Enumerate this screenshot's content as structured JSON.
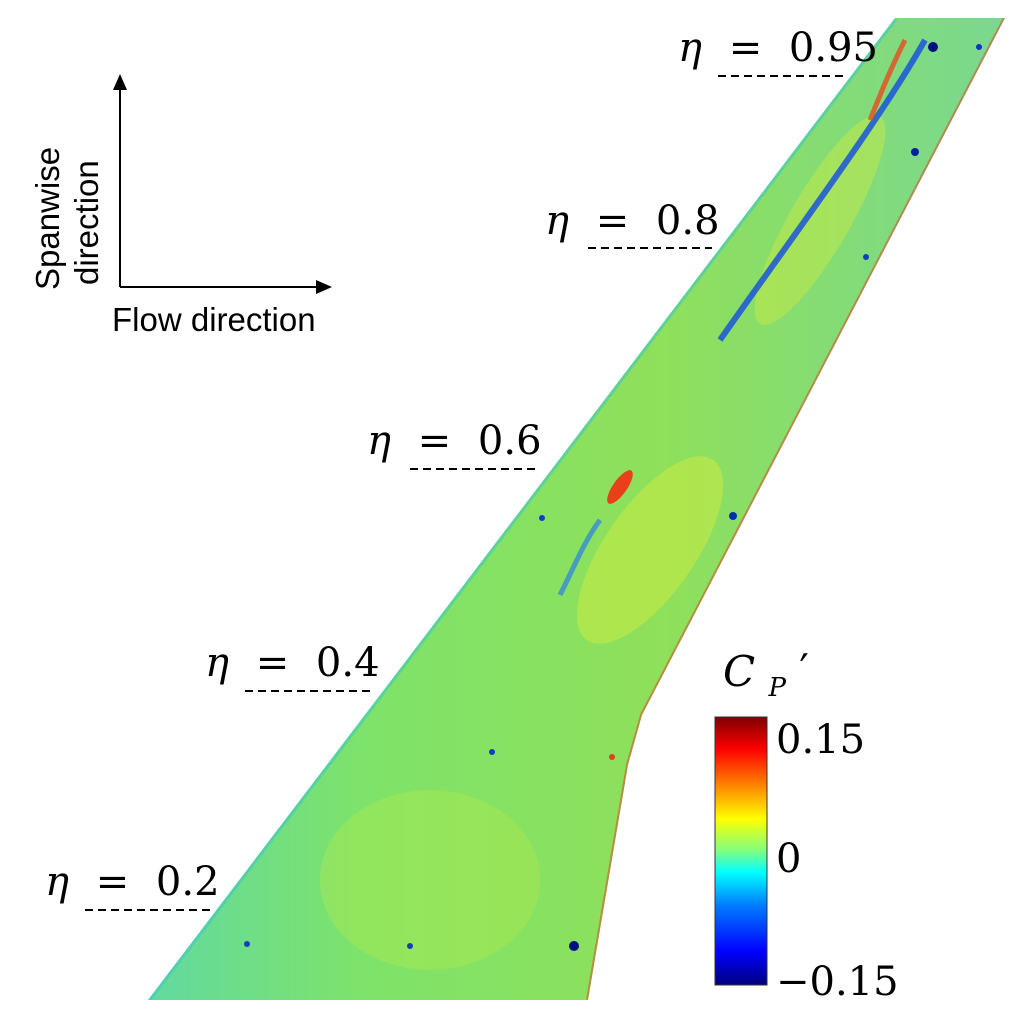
{
  "axes_indicator": {
    "spanwise_label_line1": "Spanwise",
    "spanwise_label_line2": "direction",
    "flow_label": "Flow direction"
  },
  "stations": [
    {
      "symbol": "η",
      "equals": "=",
      "value": "0.95"
    },
    {
      "symbol": "η",
      "equals": "=",
      "value": "0.8"
    },
    {
      "symbol": "η",
      "equals": "=",
      "value": "0.6"
    },
    {
      "symbol": "η",
      "equals": "=",
      "value": "0.4"
    },
    {
      "symbol": "η",
      "equals": "=",
      "value": "0.2"
    }
  ],
  "colorbar": {
    "title_main": "C",
    "title_sub": "P",
    "title_prime": "′",
    "max_label": "0.15",
    "mid_label": "0",
    "min_label": "−0.15",
    "colors": [
      "#00007f",
      "#0000ff",
      "#007fff",
      "#00ffff",
      "#7fff7f",
      "#ffff00",
      "#ff7f00",
      "#ff0000",
      "#7f0000"
    ]
  },
  "field": {
    "base_color": "#6fe05e",
    "streak_color": "#1060e0",
    "edge_color": "#e04020"
  }
}
